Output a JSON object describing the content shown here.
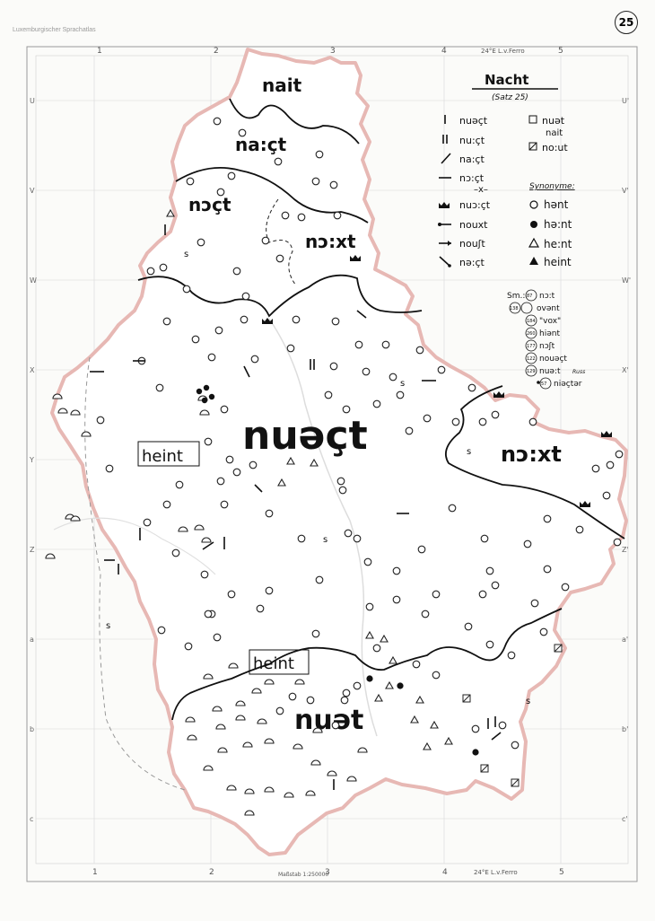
{
  "header": {
    "atlas_title": "Luxemburgischer Sprachatlas",
    "map_number": "25"
  },
  "grid": {
    "top_labels": [
      "1",
      "2",
      "3",
      "4",
      "5"
    ],
    "bottom_labels": [
      "1",
      "2",
      "3",
      "4",
      "5"
    ],
    "meridian_note": "24°E L.v.Ferro",
    "left_labels": [
      "U",
      "V",
      "W",
      "X",
      "Y",
      "Z",
      "a",
      "b",
      "c"
    ],
    "right_labels": [
      "U'",
      "V'",
      "W'",
      "X'",
      "Y'",
      "Z'",
      "a'",
      "b'",
      "c'"
    ],
    "scale_text": "Maßstab 1:250000"
  },
  "legend": {
    "title": "Nacht",
    "subtitle": "(Satz 25)",
    "main_forms": [
      {
        "symbol": "tick",
        "form": "nuəçt"
      },
      {
        "symbol": "double-tick",
        "form": "nu:çt"
      },
      {
        "symbol": "slash",
        "form": "na:çt"
      },
      {
        "symbol": "dash",
        "form": "nɔ:çt"
      },
      {
        "symbol": "crown",
        "form": "nuɔ:çt"
      },
      {
        "symbol": "dot-arrow",
        "form": "nouxt"
      },
      {
        "symbol": "arrow",
        "form": "nouʃt"
      },
      {
        "symbol": "backslash-dot",
        "form": "nə:çt"
      }
    ],
    "right_forms": [
      {
        "symbol": "square",
        "form": "nuət",
        "note": "nait"
      },
      {
        "symbol": "square-cross",
        "form": "no:ut"
      }
    ],
    "synonyme_heading": "Synonyme:",
    "synonyme": [
      {
        "symbol": "circle-open",
        "form": "hənt"
      },
      {
        "symbol": "circle-filled",
        "form": "hə:nt"
      },
      {
        "symbol": "triangle-open",
        "form": "he:nt"
      },
      {
        "symbol": "triangle-filled",
        "form": "heint"
      }
    ],
    "sm_prefix": "Sm.:",
    "singulars": [
      {
        "id": "87",
        "form": "nɔ:t"
      },
      {
        "id": "138",
        "form": "ovənt"
      },
      {
        "id": "184",
        "form": "\"vox\""
      },
      {
        "id": "260",
        "form": "hiənt"
      },
      {
        "id": "177",
        "form": "nɔʃt"
      },
      {
        "id": "122",
        "form": "nouəçt"
      },
      {
        "id": "129",
        "form": "nuə:t",
        "note": "Russ"
      },
      {
        "id": "57",
        "form": "niəçtər"
      }
    ]
  },
  "regions": [
    {
      "id": "nait",
      "label": "nait"
    },
    {
      "id": "naect-north",
      "label": "na:çt"
    },
    {
      "id": "noct",
      "label": "nɔçt"
    },
    {
      "id": "noxt-north",
      "label": "nɔ:xt"
    },
    {
      "id": "nuect-main",
      "label": "nuəçt"
    },
    {
      "id": "heint-west",
      "label": "heint"
    },
    {
      "id": "noxt-east",
      "label": "nɔ:xt"
    },
    {
      "id": "heint-south",
      "label": "heint"
    },
    {
      "id": "nuet",
      "label": "nuət"
    }
  ],
  "colors": {
    "outline": "#e7b8b4",
    "ink": "#1b1b1b",
    "grid": "#cfcfcf",
    "paper": "#fbfbf9"
  }
}
